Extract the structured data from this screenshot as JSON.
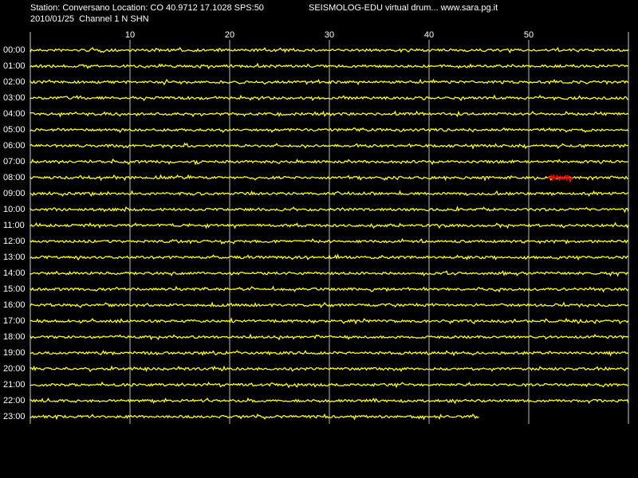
{
  "chart_data": {
    "type": "drum",
    "title": "Station: Conversano Location: CO 40.9712 17.1028 SPS:50",
    "subtitle": "SEISMOLOG-EDU virtual drum... www.sara.pg.it",
    "date_line": "2010/01/25  Channel 1 N SHN",
    "categories": [
      "00:00",
      "01:00",
      "02:00",
      "03:00",
      "04:00",
      "05:00",
      "06:00",
      "07:00",
      "08:00",
      "09:00",
      "10:00",
      "11:00",
      "12:00",
      "13:00",
      "14:00",
      "15:00",
      "16:00",
      "17:00",
      "18:00",
      "19:00",
      "20:00",
      "21:00",
      "22:00",
      "23:00"
    ],
    "values": [
      60,
      60,
      60,
      60,
      60,
      60,
      60,
      60,
      60,
      60,
      60,
      60,
      60,
      60,
      60,
      60,
      60,
      60,
      60,
      60,
      60,
      60,
      60,
      45
    ],
    "color": "#ffff00",
    "xlim": [
      0,
      60
    ],
    "xticks": [
      10,
      20,
      30,
      40,
      50
    ],
    "grid": true,
    "event": {
      "category": "08:00",
      "start": 52,
      "end": 54.5,
      "color": "#ff0000"
    }
  }
}
